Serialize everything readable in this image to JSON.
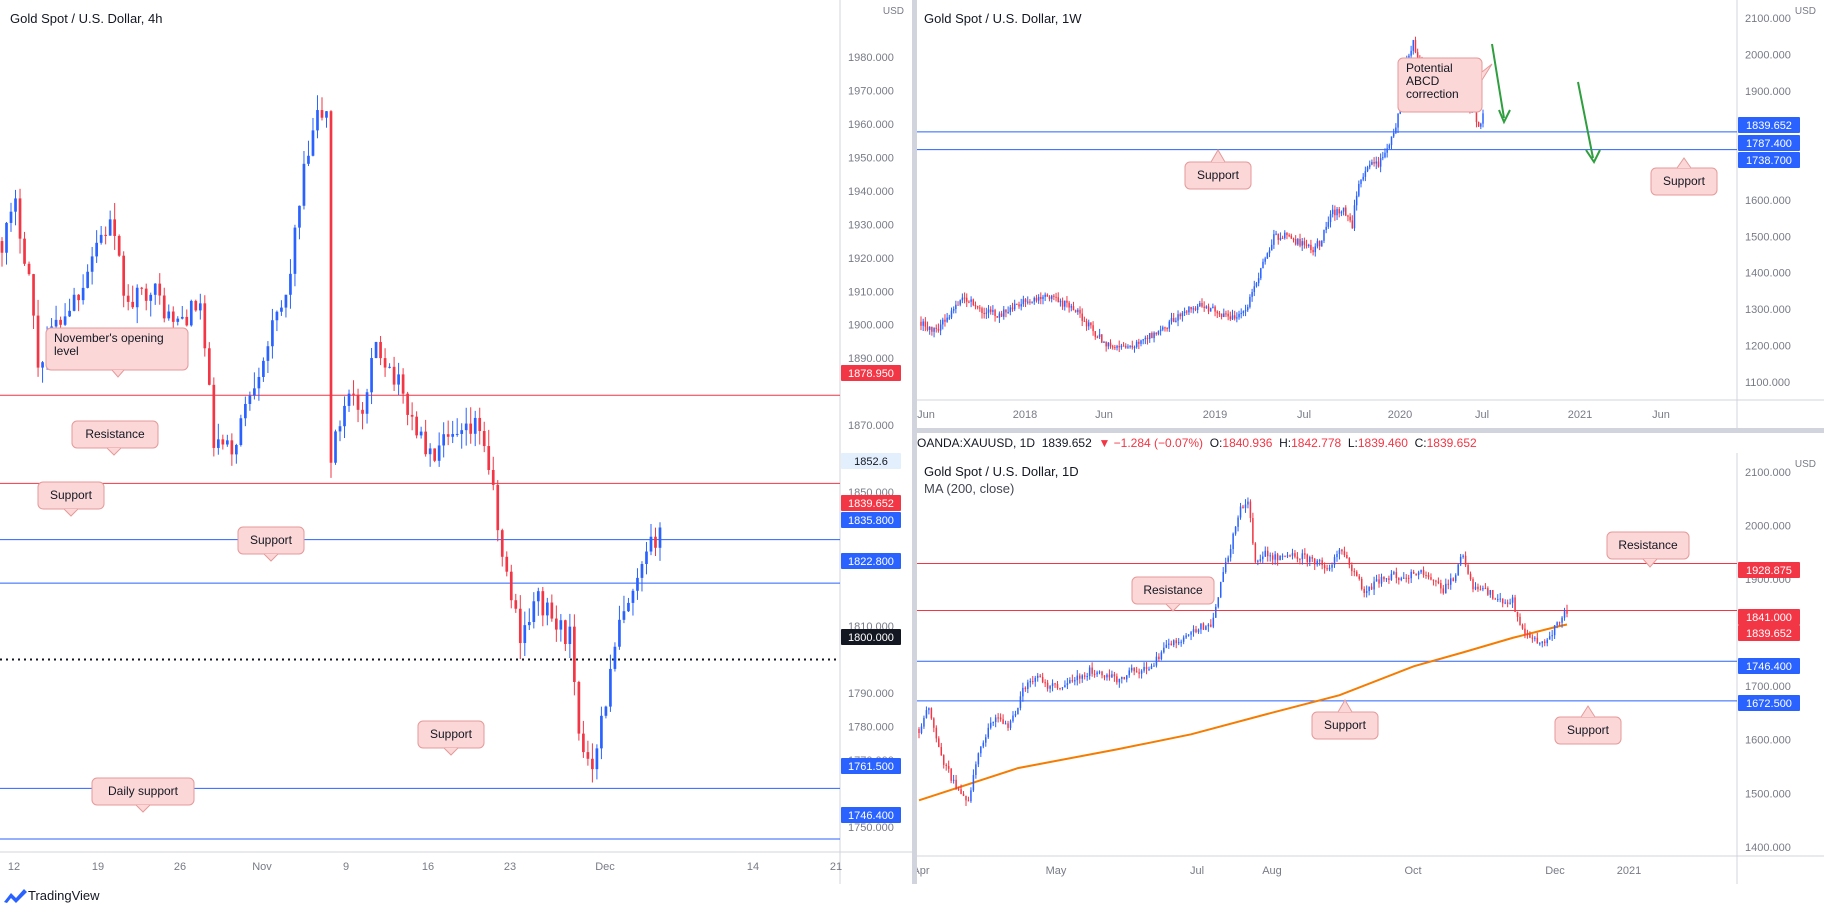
{
  "brand": "TradingView",
  "panels": {
    "h4": {
      "title": "Gold Spot / U.S. Dollar, 4h",
      "axis_unit_top": "USD",
      "y_ticks": [
        "1980.000",
        "1970.000",
        "1960.000",
        "1950.000",
        "1940.000",
        "1930.000",
        "1920.000",
        "1910.000",
        "1900.000",
        "1890.000",
        "1870.000",
        "1860.000",
        "1850.000",
        "1830.000",
        "1810.000",
        "1790.000",
        "1780.000",
        "1770.000",
        "1750.000"
      ],
      "x_ticks": [
        "12",
        "19",
        "26",
        "Nov",
        "9",
        "16",
        "23",
        "Dec",
        "14",
        "21"
      ],
      "price_tags": [
        {
          "text": "1878.950",
          "value": 1878.95,
          "bg": "#f23645",
          "fg": "#ffffff"
        },
        {
          "text": "1852.6",
          "value": 1852.6,
          "bg": "#e3effd",
          "fg": "#131722"
        },
        {
          "text": "1839.652",
          "value": 1839.652,
          "bg": "#f23645",
          "fg": "#ffffff"
        },
        {
          "text": "1835.800",
          "value": 1835.8,
          "bg": "#2962ff",
          "fg": "#ffffff"
        },
        {
          "text": "1822.800",
          "value": 1822.8,
          "bg": "#2962ff",
          "fg": "#ffffff"
        },
        {
          "text": "1800.000",
          "value": 1800.0,
          "bg": "#131722",
          "fg": "#ffffff"
        },
        {
          "text": "1761.500",
          "value": 1761.5,
          "bg": "#2962ff",
          "fg": "#ffffff"
        },
        {
          "text": "1746.400",
          "value": 1746.4,
          "bg": "#2962ff",
          "fg": "#ffffff"
        }
      ],
      "callouts": [
        "November's opening level",
        "Resistance",
        "Support",
        "Support",
        "Support",
        "Daily support"
      ]
    },
    "w1": {
      "title": "Gold Spot / U.S. Dollar, 1W",
      "axis_unit_top": "USD",
      "y_ticks": [
        "2100.000",
        "2000.000",
        "1900.000",
        "1700.000",
        "1600.000",
        "1500.000",
        "1400.000",
        "1300.000",
        "1200.000",
        "1100.000"
      ],
      "x_ticks": [
        "Jun",
        "2018",
        "Jun",
        "2019",
        "Jul",
        "2020",
        "Jul",
        "2021",
        "Jun"
      ],
      "price_tags": [
        {
          "text": "1839.652",
          "value": 1839.652,
          "bg": "#2962ff",
          "fg": "#ffffff"
        },
        {
          "text": "1787.400",
          "value": 1787.4,
          "bg": "#2962ff",
          "fg": "#ffffff"
        },
        {
          "text": "1738.700",
          "value": 1738.7,
          "bg": "#2962ff",
          "fg": "#ffffff"
        }
      ],
      "callouts": [
        "Potential ABCD correction",
        "Support",
        "Support"
      ]
    },
    "d1": {
      "title": "Gold Spot / U.S. Dollar, 1D",
      "ma_label": "MA (200, close)",
      "axis_unit_top": "USD",
      "y_ticks": [
        "2100.000",
        "2000.000",
        "1900.000",
        "1700.000",
        "1600.000",
        "1500.000",
        "1400.000"
      ],
      "x_ticks": [
        "Apr",
        "May",
        "Jul",
        "Aug",
        "Oct",
        "Dec",
        "2021"
      ],
      "price_tags": [
        {
          "text": "1928.875",
          "value": 1928.875,
          "bg": "#f23645",
          "fg": "#ffffff"
        },
        {
          "text": "1841.000",
          "value": 1841.0,
          "bg": "#f23645",
          "fg": "#ffffff"
        },
        {
          "text": "1839.652",
          "value": 1839.652,
          "bg": "#f23645",
          "fg": "#ffffff"
        },
        {
          "text": "1746.400",
          "value": 1746.4,
          "bg": "#2962ff",
          "fg": "#ffffff"
        },
        {
          "text": "1672.500",
          "value": 1672.5,
          "bg": "#2962ff",
          "fg": "#ffffff"
        }
      ],
      "callouts": [
        "Resistance",
        "Resistance",
        "Support",
        "Support"
      ]
    }
  },
  "quote_bar": {
    "symbol": "OANDA:XAUUSD, 1D",
    "last": "1839.652",
    "change": "▼ −1.284 (−0.07%)",
    "o_label": "O:",
    "o_val": "1840.936",
    "h_label": "H:",
    "h_val": "1842.778",
    "l_label": "L:",
    "l_val": "1839.460",
    "c_label": "C:",
    "c_val": "1839.652"
  },
  "colors": {
    "up": "#2962ff",
    "down": "#f23645",
    "resistance": "#f23645",
    "support": "#2962ff",
    "ma": "#f57c00",
    "arrow": "#2e9e3e",
    "callout_bg": "#fbd7d7",
    "callout_border": "#e59a9a"
  },
  "chart_data": [
    {
      "type": "candlestick",
      "title": "Gold Spot / U.S. Dollar, 4h",
      "ylim": [
        1742,
        1995
      ],
      "levels": [
        {
          "name": "November's opening level",
          "value": 1878.95,
          "kind": "resistance"
        },
        {
          "name": "Resistance",
          "value": 1852.6,
          "kind": "resistance"
        },
        {
          "name": "Support",
          "value": 1835.8,
          "kind": "support"
        },
        {
          "name": "Support",
          "value": 1822.8,
          "kind": "support"
        },
        {
          "name": "",
          "value": 1800.0,
          "kind": "round-number"
        },
        {
          "name": "Support",
          "value": 1761.5,
          "kind": "support"
        },
        {
          "name": "Daily support",
          "value": 1746.4,
          "kind": "support"
        }
      ],
      "path": [
        [
          0,
          1925
        ],
        [
          3,
          1935
        ],
        [
          6,
          1915
        ],
        [
          8,
          1888
        ],
        [
          10,
          1895
        ],
        [
          13,
          1902
        ],
        [
          17,
          1910
        ],
        [
          21,
          1925
        ],
        [
          24,
          1930
        ],
        [
          28,
          1905
        ],
        [
          33,
          1912
        ],
        [
          38,
          1900
        ],
        [
          44,
          1906
        ],
        [
          47,
          1865
        ],
        [
          51,
          1862
        ],
        [
          55,
          1880
        ],
        [
          59,
          1895
        ],
        [
          63,
          1908
        ],
        [
          67,
          1945
        ],
        [
          70,
          1962
        ],
        [
          72,
          1963
        ],
        [
          73,
          1860
        ],
        [
          77,
          1882
        ],
        [
          80,
          1870
        ],
        [
          83,
          1895
        ],
        [
          87,
          1885
        ],
        [
          91,
          1872
        ],
        [
          95,
          1860
        ],
        [
          98,
          1864
        ],
        [
          102,
          1866
        ],
        [
          106,
          1870
        ],
        [
          108,
          1858
        ],
        [
          111,
          1830
        ],
        [
          115,
          1808
        ],
        [
          119,
          1818
        ],
        [
          123,
          1810
        ],
        [
          126,
          1807
        ],
        [
          128,
          1775
        ],
        [
          131,
          1770
        ],
        [
          134,
          1788
        ],
        [
          137,
          1810
        ],
        [
          140,
          1818
        ],
        [
          143,
          1830
        ],
        [
          146,
          1840
        ]
      ]
    },
    {
      "type": "candlestick",
      "title": "Gold Spot / U.S. Dollar, 1W",
      "ylim": [
        1050,
        2150
      ],
      "levels": [
        {
          "name": "Support",
          "value": 1787.4,
          "kind": "support"
        },
        {
          "name": "Support",
          "value": 1738.7,
          "kind": "support"
        }
      ],
      "path": [
        [
          0,
          1265
        ],
        [
          6,
          1240
        ],
        [
          12,
          1275
        ],
        [
          20,
          1335
        ],
        [
          28,
          1300
        ],
        [
          36,
          1285
        ],
        [
          46,
          1315
        ],
        [
          56,
          1340
        ],
        [
          64,
          1320
        ],
        [
          72,
          1290
        ],
        [
          80,
          1230
        ],
        [
          88,
          1195
        ],
        [
          96,
          1195
        ],
        [
          104,
          1220
        ],
        [
          112,
          1250
        ],
        [
          120,
          1290
        ],
        [
          128,
          1315
        ],
        [
          136,
          1290
        ],
        [
          144,
          1280
        ],
        [
          150,
          1310
        ],
        [
          156,
          1410
        ],
        [
          162,
          1495
        ],
        [
          168,
          1505
        ],
        [
          174,
          1480
        ],
        [
          180,
          1465
        ],
        [
          184,
          1490
        ],
        [
          188,
          1560
        ],
        [
          194,
          1575
        ],
        [
          198,
          1530
        ],
        [
          200,
          1620
        ],
        [
          204,
          1690
        ],
        [
          210,
          1700
        ],
        [
          214,
          1740
        ],
        [
          218,
          1810
        ],
        [
          222,
          1960
        ],
        [
          226,
          2030
        ],
        [
          230,
          1960
        ],
        [
          234,
          1900
        ],
        [
          238,
          1920
        ],
        [
          242,
          1905
        ],
        [
          246,
          1880
        ],
        [
          250,
          1870
        ],
        [
          252,
          1860
        ],
        [
          254,
          1840
        ],
        [
          256,
          1795
        ],
        [
          258,
          1840
        ]
      ]
    },
    {
      "type": "candlestick",
      "title": "Gold Spot / U.S. Dollar, 1D",
      "ylim": [
        1390,
        2130
      ],
      "series": [
        {
          "name": "MA (200, close)",
          "values": [
            [
              0,
              1487
            ],
            [
              40,
              1547
            ],
            [
              80,
              1582
            ],
            [
              110,
              1610
            ],
            [
              140,
              1647
            ],
            [
              170,
              1683
            ],
            [
              200,
              1737
            ],
            [
              220,
              1763
            ],
            [
              240,
              1790
            ],
            [
              258,
              1811
            ],
            [
              262,
              1815
            ]
          ]
        }
      ],
      "levels": [
        {
          "name": "Resistance",
          "value": 1928.875,
          "kind": "resistance"
        },
        {
          "name": "Resistance",
          "value": 1841.0,
          "kind": "resistance"
        },
        {
          "name": "Support",
          "value": 1746.4,
          "kind": "support"
        },
        {
          "name": "Support",
          "value": 1672.5,
          "kind": "support"
        }
      ],
      "path": [
        [
          0,
          1620
        ],
        [
          4,
          1660
        ],
        [
          8,
          1580
        ],
        [
          12,
          1540
        ],
        [
          16,
          1500
        ],
        [
          20,
          1480
        ],
        [
          24,
          1580
        ],
        [
          28,
          1620
        ],
        [
          32,
          1640
        ],
        [
          36,
          1620
        ],
        [
          42,
          1690
        ],
        [
          48,
          1720
        ],
        [
          52,
          1700
        ],
        [
          58,
          1700
        ],
        [
          64,
          1715
        ],
        [
          70,
          1730
        ],
        [
          76,
          1720
        ],
        [
          82,
          1710
        ],
        [
          86,
          1730
        ],
        [
          92,
          1730
        ],
        [
          100,
          1770
        ],
        [
          106,
          1790
        ],
        [
          110,
          1800
        ],
        [
          114,
          1810
        ],
        [
          118,
          1810
        ],
        [
          122,
          1890
        ],
        [
          126,
          1960
        ],
        [
          130,
          2030
        ],
        [
          133,
          2050
        ],
        [
          136,
          1930
        ],
        [
          140,
          1950
        ],
        [
          144,
          1940
        ],
        [
          150,
          1950
        ],
        [
          156,
          1940
        ],
        [
          162,
          1930
        ],
        [
          166,
          1920
        ],
        [
          170,
          1960
        ],
        [
          176,
          1910
        ],
        [
          180,
          1880
        ],
        [
          184,
          1890
        ],
        [
          188,
          1900
        ],
        [
          192,
          1910
        ],
        [
          196,
          1900
        ],
        [
          200,
          1910
        ],
        [
          204,
          1910
        ],
        [
          208,
          1900
        ],
        [
          212,
          1880
        ],
        [
          216,
          1900
        ],
        [
          220,
          1950
        ],
        [
          224,
          1880
        ],
        [
          228,
          1880
        ],
        [
          232,
          1870
        ],
        [
          236,
          1860
        ],
        [
          240,
          1860
        ],
        [
          244,
          1800
        ],
        [
          248,
          1790
        ],
        [
          252,
          1780
        ],
        [
          256,
          1800
        ],
        [
          260,
          1830
        ],
        [
          262,
          1840
        ]
      ]
    }
  ]
}
